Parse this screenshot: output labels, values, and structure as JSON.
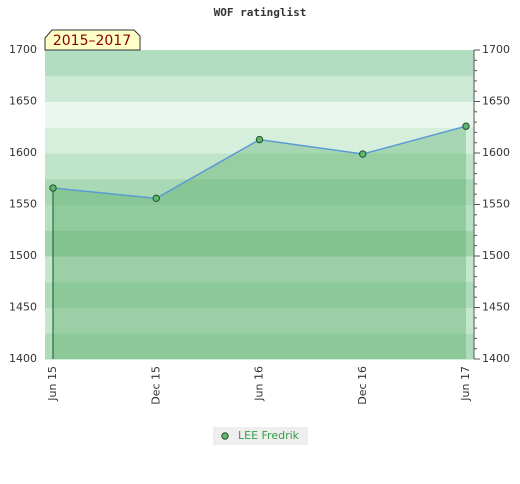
{
  "chart_data": {
    "type": "line",
    "title": "WOF ratinglist",
    "annotation": "2015–2017",
    "categories": [
      "Jun 15",
      "Dec 15",
      "Jun 16",
      "Dec 16",
      "Jun 17"
    ],
    "series": [
      {
        "name": "LEE Fredrik",
        "color": "#5b9bd5",
        "marker_color": "#5cb870",
        "values": [
          1566,
          1556,
          1613,
          1599,
          1626
        ]
      }
    ],
    "ylim": [
      1400,
      1700
    ],
    "yticks": [
      1400,
      1450,
      1500,
      1550,
      1600,
      1650,
      1700
    ],
    "y2lim": [
      1400,
      1700
    ],
    "y2ticks": [
      1400,
      1450,
      1500,
      1550,
      1600,
      1650,
      1700
    ],
    "legend": "bottom"
  }
}
